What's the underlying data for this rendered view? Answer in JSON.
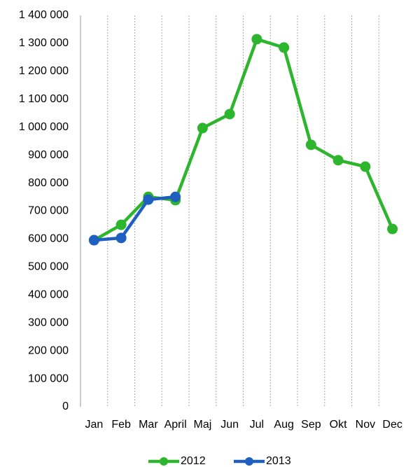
{
  "chart_data": {
    "type": "line",
    "categories": [
      "Jan",
      "Feb",
      "Mar",
      "April",
      "Maj",
      "Jun",
      "Jul",
      "Aug",
      "Sep",
      "Okt",
      "Nov",
      "Dec"
    ],
    "series": [
      {
        "name": "2012",
        "color": "#2db52d",
        "values": [
          596000,
          651000,
          751000,
          739000,
          997000,
          1047000,
          1315000,
          1285000,
          937000,
          882000,
          859000,
          636000
        ]
      },
      {
        "name": "2013",
        "color": "#1f5fbf",
        "values": [
          596000,
          604000,
          741000,
          751000,
          null,
          null,
          null,
          null,
          null,
          null,
          null,
          null
        ]
      }
    ],
    "ylim": [
      0,
      1400000
    ],
    "yticks": [
      0,
      {
        "value": 100000,
        "label": "100 000"
      },
      {
        "value": 200000,
        "label": "200 000"
      },
      {
        "value": 300000,
        "label": "300 000"
      },
      {
        "value": 400000,
        "label": "400 000"
      },
      {
        "value": 500000,
        "label": "500 000"
      },
      {
        "value": 600000,
        "label": "600 000"
      },
      {
        "value": 700000,
        "label": "700 000"
      },
      {
        "value": 800000,
        "label": "800 000"
      },
      {
        "value": 900000,
        "label": "900 000"
      },
      {
        "value": 1000000,
        "label": "1 000 000"
      },
      {
        "value": 1100000,
        "label": "1 100 000"
      },
      {
        "value": 1200000,
        "label": "1 200 000"
      },
      {
        "value": 1300000,
        "label": "1 300 000"
      },
      {
        "value": 1400000,
        "label": "1 400 000"
      }
    ],
    "grid": "vertical",
    "legend": "bottom"
  }
}
